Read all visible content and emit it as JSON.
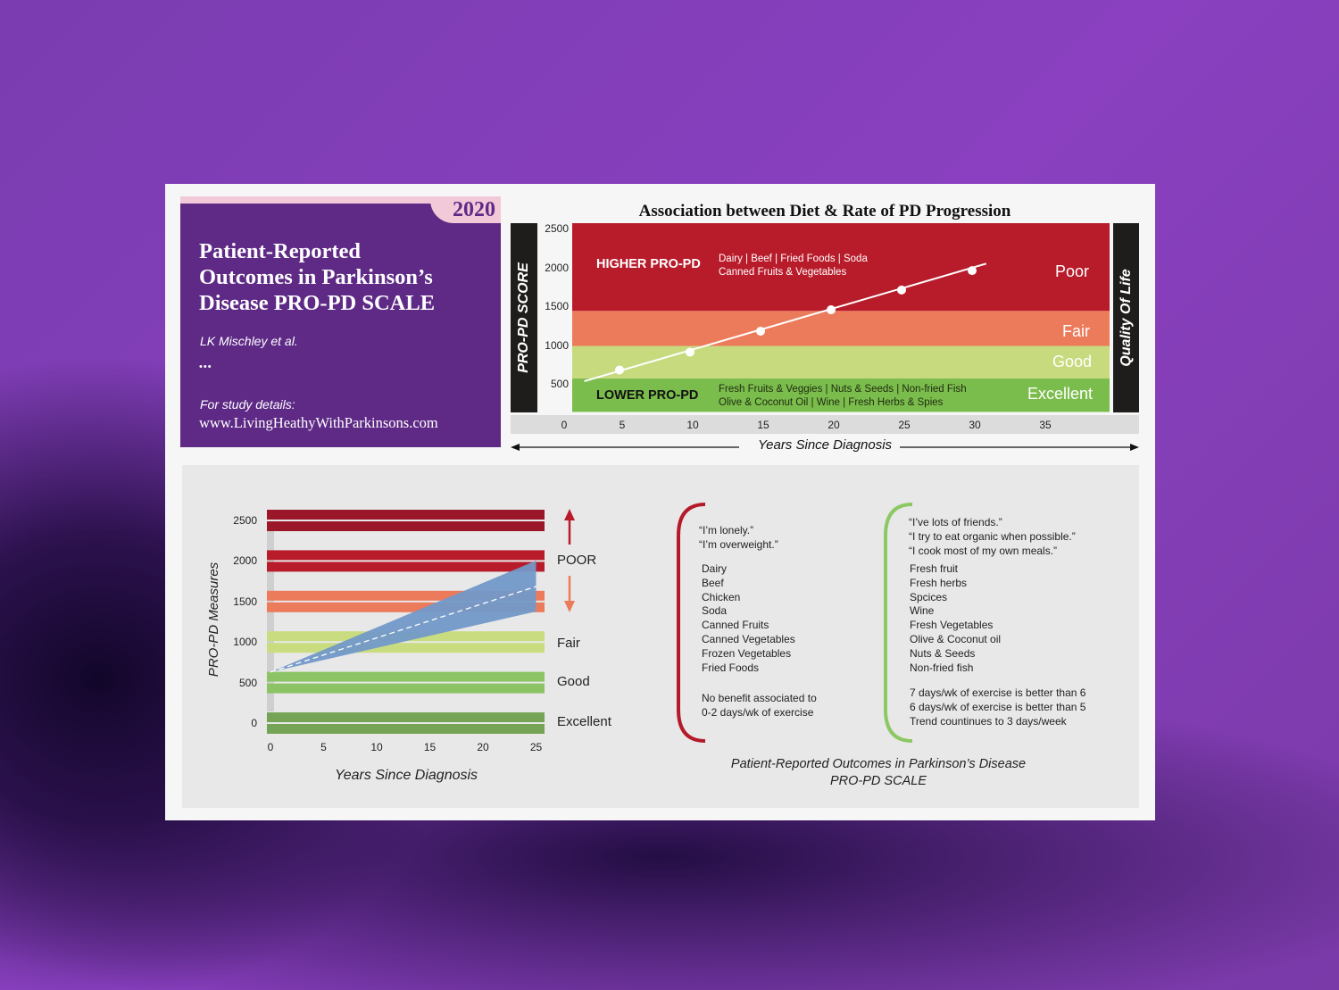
{
  "title_card": {
    "year": "2020",
    "title_lines": [
      "Patient-Reported",
      "Outcomes in Parkinson’s",
      "Disease PRO-PD SCALE"
    ],
    "author": "LK Mischley et al.",
    "ellipsis": "•••",
    "details_label": "For study details:",
    "url": "www.LivingHeathyWithParkinsons.com"
  },
  "top_chart": {
    "higher_label": "HIGHER PRO-PD",
    "higher_foods": [
      "Dairy  |  Beef  |  Fried Foods  |  Soda",
      "Canned Fruits & Vegetables"
    ],
    "lower_label": "LOWER PRO-PD",
    "lower_foods": [
      "Fresh Fruits & Veggies  |  Nuts & Seeds  |  Non-fried Fish",
      "Olive & Coconut Oil  |  Wine  |  Fresh Herbs & Spies"
    ],
    "right_axis_label": "Quality Of Life"
  },
  "bottom_text": {
    "poor_quotes": [
      "“I’m lonely.”",
      "“I’m overweight.”"
    ],
    "poor_foods": [
      "Dairy",
      "Beef",
      "Chicken",
      "Soda",
      "Canned Fruits",
      "Canned Vegetables",
      "Frozen Vegetables",
      "Fried Foods"
    ],
    "poor_exercise": [
      "No benefit associated to",
      "0-2 days/wk of exercise"
    ],
    "good_quotes": [
      "“I’ve lots of friends.”",
      "“I try to eat organic when possible.”",
      "“I cook most of my own meals.”"
    ],
    "good_foods": [
      "Fresh fruit",
      "Fresh herbs",
      "Spcices",
      "Wine",
      "Fresh Vegetables",
      "Olive & Coconut oil",
      "Nuts & Seeds",
      "Non-fried fish"
    ],
    "good_exercise": [
      "7 days/wk of exercise is better than 6",
      "6 days/wk of exercise is better than 5",
      "Trend countinues to 3 days/week"
    ],
    "footer": [
      "Patient-Reported Outcomes in Parkinson’s Disease",
      "PRO-PD SCALE"
    ]
  },
  "colors": {
    "poor": "#b81c2b",
    "fair": "#ec7b5c",
    "good": "#c7da7e",
    "excellent": "#7bbd4c",
    "wedge": "#7399c8",
    "bracket_poor": "#b51a2a",
    "bracket_good": "#8cc863"
  },
  "chart_data": [
    {
      "type": "line",
      "title": "Association between Diet & Rate of PD Progression",
      "xlabel": "Years Since Diagnosis",
      "ylabel": "PRO-PD SCORE",
      "xlim": [
        0,
        38
      ],
      "ylim": [
        150,
        2600
      ],
      "x_ticks": [
        "0",
        "5",
        "10",
        "15",
        "20",
        "25",
        "30",
        "35"
      ],
      "y_ticks": [
        "2500",
        "2000",
        "1500",
        "1000",
        "500"
      ],
      "bands": [
        {
          "name": "Poor",
          "from": 1450,
          "to": 2600,
          "color": "#b81c2b"
        },
        {
          "name": "Fair",
          "from": 1000,
          "to": 1450,
          "color": "#ec7b5c"
        },
        {
          "name": "Good",
          "from": 580,
          "to": 1000,
          "color": "#c7da7e"
        },
        {
          "name": "Excellent",
          "from": 150,
          "to": 580,
          "color": "#7bbd4c"
        }
      ],
      "line": {
        "x": [
          2.5,
          31
        ],
        "y": [
          545,
          2060
        ]
      },
      "points": {
        "x": [
          5,
          10,
          15,
          20,
          25,
          30
        ],
        "y": [
          690,
          920,
          1190,
          1465,
          1720,
          1970
        ]
      }
    },
    {
      "type": "area",
      "xlabel": "Years Since Diagnosis",
      "ylabel": "PRO-PD Measures",
      "xlim": [
        0,
        25
      ],
      "ylim": [
        0,
        2500
      ],
      "x_ticks": [
        "0",
        "5",
        "10",
        "15",
        "20",
        "25"
      ],
      "y_ticks": [
        "2500",
        "2000",
        "1500",
        "1000",
        "500",
        "0"
      ],
      "bands": [
        {
          "level": 2500,
          "color": "#9b1628"
        },
        {
          "level": 2000,
          "color": "#b81c2b"
        },
        {
          "level": 1500,
          "color": "#ec7b5c"
        },
        {
          "level": 1000,
          "color": "#c9dc80"
        },
        {
          "level": 500,
          "color": "#8cc365"
        },
        {
          "level": 0,
          "color": "#76a457"
        }
      ],
      "band_labels": [
        "POOR",
        "Fair",
        "Good",
        "Excellent"
      ],
      "wedge": {
        "start": [
          0,
          640
        ],
        "end_upper": [
          25,
          2015
        ],
        "end_center": [
          25,
          1696
        ],
        "end_lower": [
          25,
          1388
        ]
      }
    }
  ]
}
